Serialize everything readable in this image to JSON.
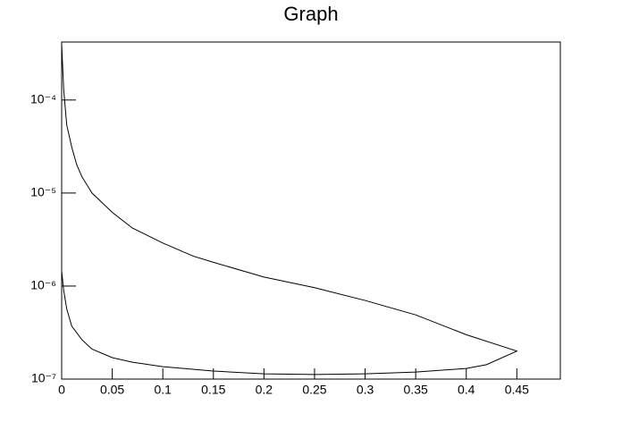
{
  "chart_data": {
    "type": "line",
    "title": "Graph",
    "x": [
      0,
      0.002,
      0.005,
      0.01,
      0.015,
      0.02,
      0.03,
      0.05,
      0.07,
      0.1,
      0.13,
      0.15,
      0.2,
      0.25,
      0.3,
      0.35,
      0.4,
      0.45,
      0.42,
      0.4,
      0.35,
      0.3,
      0.25,
      0.2,
      0.15,
      0.1,
      0.07,
      0.05,
      0.03,
      0.02,
      0.01,
      0.005,
      0.002,
      0
    ],
    "series": [
      {
        "color": "#000000",
        "values": [
          0.0004,
          0.00013,
          5.4e-05,
          3.1e-05,
          2e-05,
          1.5e-05,
          1e-05,
          6.2e-06,
          4.2e-06,
          2.9e-06,
          2.1e-06,
          1.8e-06,
          1.25e-06,
          9.6e-07,
          7e-07,
          4.9e-07,
          3e-07,
          2e-07,
          1.43e-07,
          1.3e-07,
          1.19e-07,
          1.14e-07,
          1.12e-07,
          1.14e-07,
          1.22e-07,
          1.36e-07,
          1.52e-07,
          1.7e-07,
          2.1e-07,
          2.65e-07,
          3.7e-07,
          5.7e-07,
          9e-07,
          1.45e-06
        ]
      }
    ],
    "xlim": [
      0,
      0.493
    ],
    "xticks": [
      0,
      0.05,
      0.1,
      0.15,
      0.2,
      0.25,
      0.3,
      0.35,
      0.4,
      0.45
    ],
    "ylim": [
      1e-07,
      0.00042
    ],
    "yticks": [
      {
        "value": 1e-07,
        "label": "10⁻⁷"
      },
      {
        "value": 1e-06,
        "label": "10⁻⁶"
      },
      {
        "value": 1e-05,
        "label": "10⁻⁵"
      },
      {
        "value": 0.0001,
        "label": "10⁻⁴"
      }
    ],
    "log_y": true,
    "grid": false
  }
}
